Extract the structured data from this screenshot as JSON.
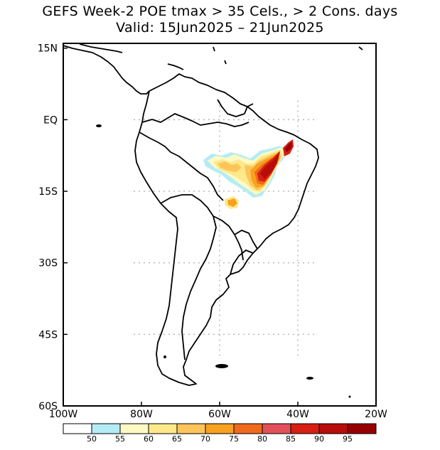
{
  "title": {
    "line1": "GEFS Week-2 POE tmax > 35 Cels., > 2 Cons. days",
    "line2": "Valid: 15Jun2025 – 21Jun2025"
  },
  "map": {
    "lon_range": [
      -100,
      -20
    ],
    "lat_range": [
      -60,
      16
    ],
    "lat_ticks": [
      {
        "value": 15,
        "label": "15N"
      },
      {
        "value": 0,
        "label": "EQ"
      },
      {
        "value": -15,
        "label": "15S"
      },
      {
        "value": -30,
        "label": "30S"
      },
      {
        "value": -45,
        "label": "45S"
      },
      {
        "value": -60,
        "label": "60S"
      }
    ],
    "lon_ticks": [
      {
        "value": -100,
        "label": "100W"
      },
      {
        "value": -80,
        "label": "80W"
      },
      {
        "value": -60,
        "label": "60W"
      },
      {
        "value": -40,
        "label": "40W"
      },
      {
        "value": -20,
        "label": "20W"
      }
    ],
    "grid_lons": [
      -60,
      -40
    ],
    "grid_lats": [
      0,
      -15,
      -30,
      -45
    ]
  },
  "colorbar": {
    "labels": [
      "50",
      "55",
      "60",
      "65",
      "70",
      "75",
      "80",
      "85",
      "90",
      "95"
    ],
    "colors": [
      "#ffffff",
      "#b4ecf5",
      "#fff9c4",
      "#fde98a",
      "#fcc55a",
      "#f7a11e",
      "#ef6a1c",
      "#e2515a",
      "#d81f13",
      "#b80d0a",
      "#960000"
    ]
  },
  "colors": {
    "frame": "#000000",
    "coast": "#000000",
    "grid": "#b4b4b4"
  }
}
